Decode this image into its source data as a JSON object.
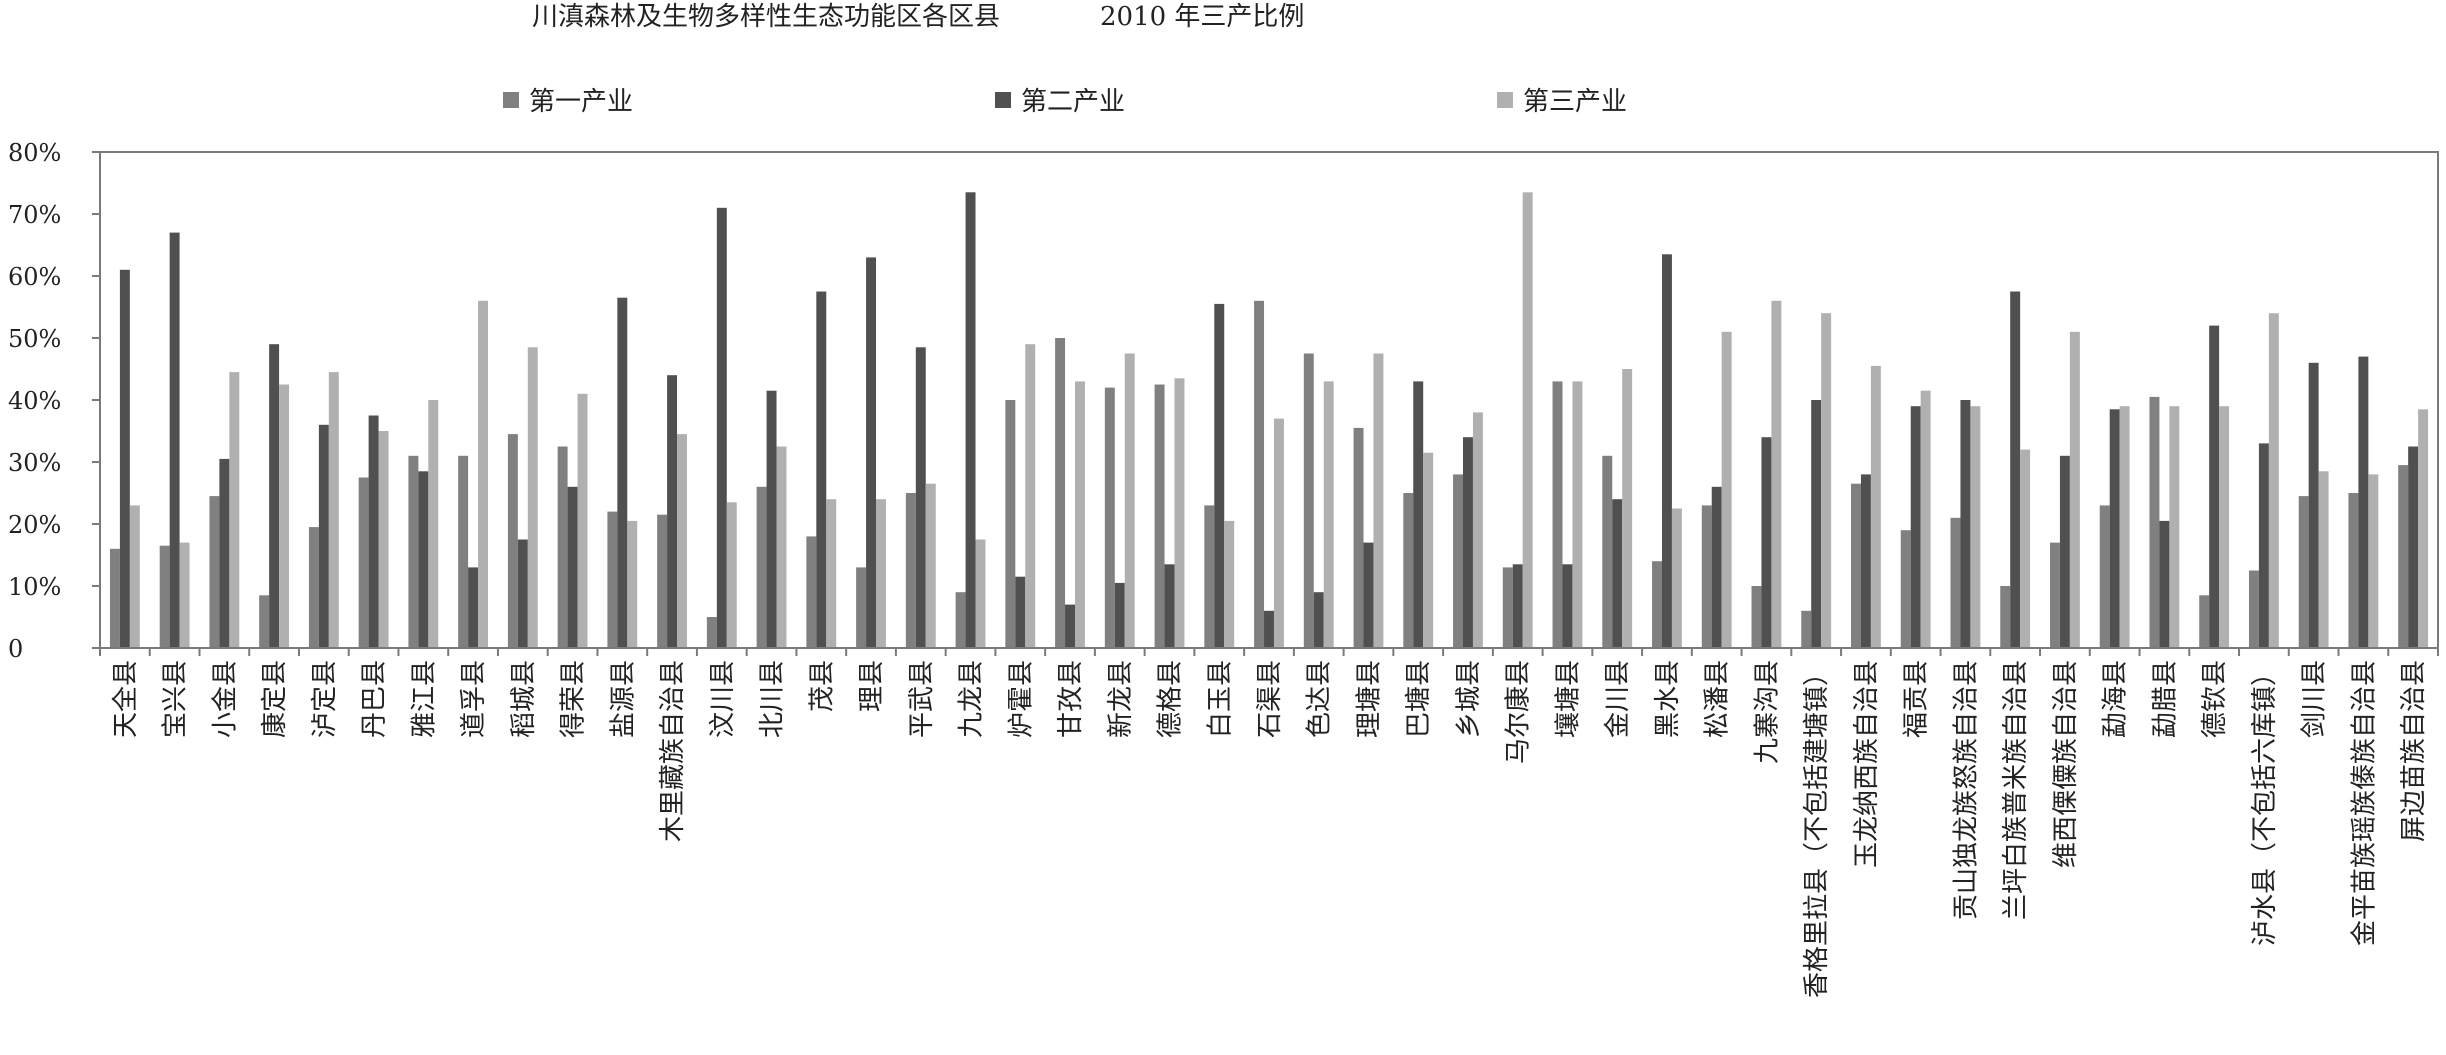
{
  "chart_data": {
    "type": "bar",
    "title": "川滇森林及生物多样性生态功能区各区县",
    "subtitle": "2010 年三产比例",
    "xlabel": "",
    "ylabel": "",
    "ylim": [
      0,
      80
    ],
    "yticks": [
      "0",
      "10%",
      "20%",
      "30%",
      "40%",
      "50%",
      "60%",
      "70%",
      "80%"
    ],
    "grid": false,
    "legend_position": "top",
    "colors": [
      "#808080",
      "#505050",
      "#b0b0b0"
    ],
    "categories": [
      "天全县",
      "宝兴县",
      "小金县",
      "康定县",
      "泸定县",
      "丹巴县",
      "雅江县",
      "道孚县",
      "稻城县",
      "得荣县",
      "盐源县",
      "木里藏族自治县",
      "汶川县",
      "北川县",
      "茂县",
      "理县",
      "平武县",
      "九龙县",
      "炉霍县",
      "甘孜县",
      "新龙县",
      "德格县",
      "白玉县",
      "石渠县",
      "色达县",
      "理塘县",
      "巴塘县",
      "乡城县",
      "马尔康县",
      "壤塘县",
      "金川县",
      "黑水县",
      "松潘县",
      "九寨沟县",
      "香格里拉县（不包括建塘镇）",
      "玉龙纳西族自治县",
      "福贡县",
      "贡山独龙族怒族自治县",
      "兰坪白族普米族自治县",
      "维西傈僳族自治县",
      "勐海县",
      "勐腊县",
      "德钦县",
      "泸水县（不包括六库镇）",
      "剑川县",
      "金平苗族瑶族傣族自治县",
      "屏边苗族自治县"
    ],
    "series": [
      {
        "name": "第一产业",
        "values": [
          16,
          16.5,
          24.5,
          8.5,
          19.5,
          27.5,
          31,
          31,
          34.5,
          32.5,
          22,
          21.5,
          5,
          26,
          18,
          13,
          25,
          9,
          40,
          50,
          42,
          42.5,
          23,
          56,
          47.5,
          35.5,
          25,
          28,
          13,
          43,
          31,
          14,
          23,
          10,
          6,
          26.5,
          19,
          21,
          10,
          17,
          23,
          40.5,
          8.5,
          12.5,
          24.5,
          25,
          29.5
        ]
      },
      {
        "name": "第二产业",
        "values": [
          61,
          67,
          30.5,
          49,
          36,
          37.5,
          28.5,
          13,
          17.5,
          26,
          56.5,
          44,
          71,
          41.5,
          57.5,
          63,
          48.5,
          73.5,
          11.5,
          7,
          10.5,
          13.5,
          55.5,
          6,
          9,
          17,
          43,
          34,
          13.5,
          13.5,
          24,
          63.5,
          26,
          34,
          40,
          28,
          39,
          40,
          57.5,
          31,
          38.5,
          20.5,
          52,
          33,
          46,
          47,
          32.5
        ]
      },
      {
        "name": "第三产业",
        "values": [
          23,
          17,
          44.5,
          42.5,
          44.5,
          35,
          40,
          56,
          48.5,
          41,
          20.5,
          34.5,
          23.5,
          32.5,
          24,
          24,
          26.5,
          17.5,
          49,
          43,
          47.5,
          43.5,
          20.5,
          37,
          43,
          47.5,
          31.5,
          38,
          73.5,
          43,
          45,
          22.5,
          51,
          56,
          54,
          45.5,
          41.5,
          39,
          32,
          51,
          39,
          39,
          39,
          54,
          28.5,
          28,
          38.5
        ]
      }
    ]
  }
}
